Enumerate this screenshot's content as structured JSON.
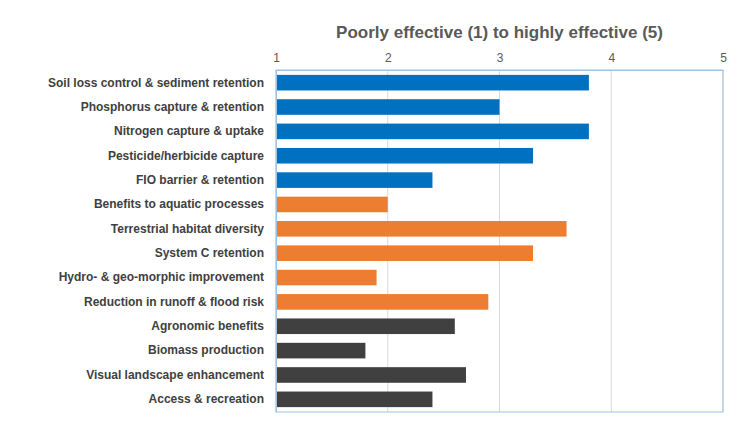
{
  "chart_data": {
    "type": "bar",
    "orientation": "horizontal",
    "title": "Poorly effective (1) to highly effective (5)",
    "categories": [
      "Soil loss control & sediment retention",
      "Phosphorus capture & retention",
      "Nitrogen capture & uptake",
      "Pesticide/herbicide capture",
      "FIO barrier & retention",
      "Benefits to aquatic processes",
      "Terrestrial habitat diversity",
      "System C retention",
      "Hydro- & geo-morphic improvement",
      "Reduction in runoff & flood risk",
      "Agronomic benefits",
      "Biomass production",
      "Visual landscape enhancement",
      "Access & recreation"
    ],
    "values": [
      3.8,
      3.0,
      3.8,
      3.3,
      2.4,
      2.0,
      3.6,
      3.3,
      1.9,
      2.9,
      2.6,
      1.8,
      2.7,
      2.4
    ],
    "colors": [
      "#0070c0",
      "#0070c0",
      "#0070c0",
      "#0070c0",
      "#0070c0",
      "#ed7d31",
      "#ed7d31",
      "#ed7d31",
      "#ed7d31",
      "#ed7d31",
      "#404040",
      "#404040",
      "#404040",
      "#404040"
    ],
    "xlim": [
      1,
      5
    ],
    "xticks": [
      1,
      2,
      3,
      4,
      5
    ],
    "grid": true
  }
}
